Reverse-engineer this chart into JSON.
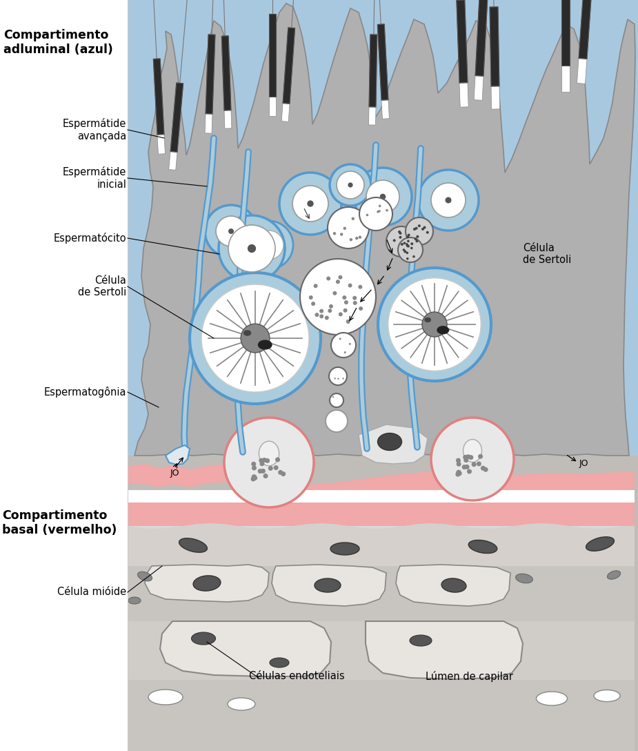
{
  "figsize": [
    9.25,
    10.88
  ],
  "dpi": 100,
  "bg_color": "#ffffff",
  "blue_bg": "#a8c8e0",
  "grey_bg": "#b8b8b8",
  "cell_grey": "#b0b0b0",
  "cell_grey_light": "#c8c8c8",
  "blue_outline": "#5599cc",
  "blue_fill": "#aaccdd",
  "pink": "#f0a8a8",
  "white_cell": "#f5f5f5",
  "labels": {
    "compartimento_adluminal": "Compartimento\nadluminal (azul)",
    "espermatide_avancada": "Espermátide\navançada",
    "espermatide_inicial": "Espermátide\ninicial",
    "espermatocito": "Espermatócito",
    "celula_sertoli_left": "Célula\nde Sertoli",
    "espermatogonia": "Espermatogônia",
    "jo": "JO",
    "compartimento_basal": "Compartimento\nbasal (vermelho)",
    "celula_mioide": "Célula mióide",
    "celulas_endoteliais": "Células endoteliais",
    "lumen_capilar": "Lúmen de capilar",
    "celula_sertoli_right": "Célula\nde Sertoli"
  }
}
